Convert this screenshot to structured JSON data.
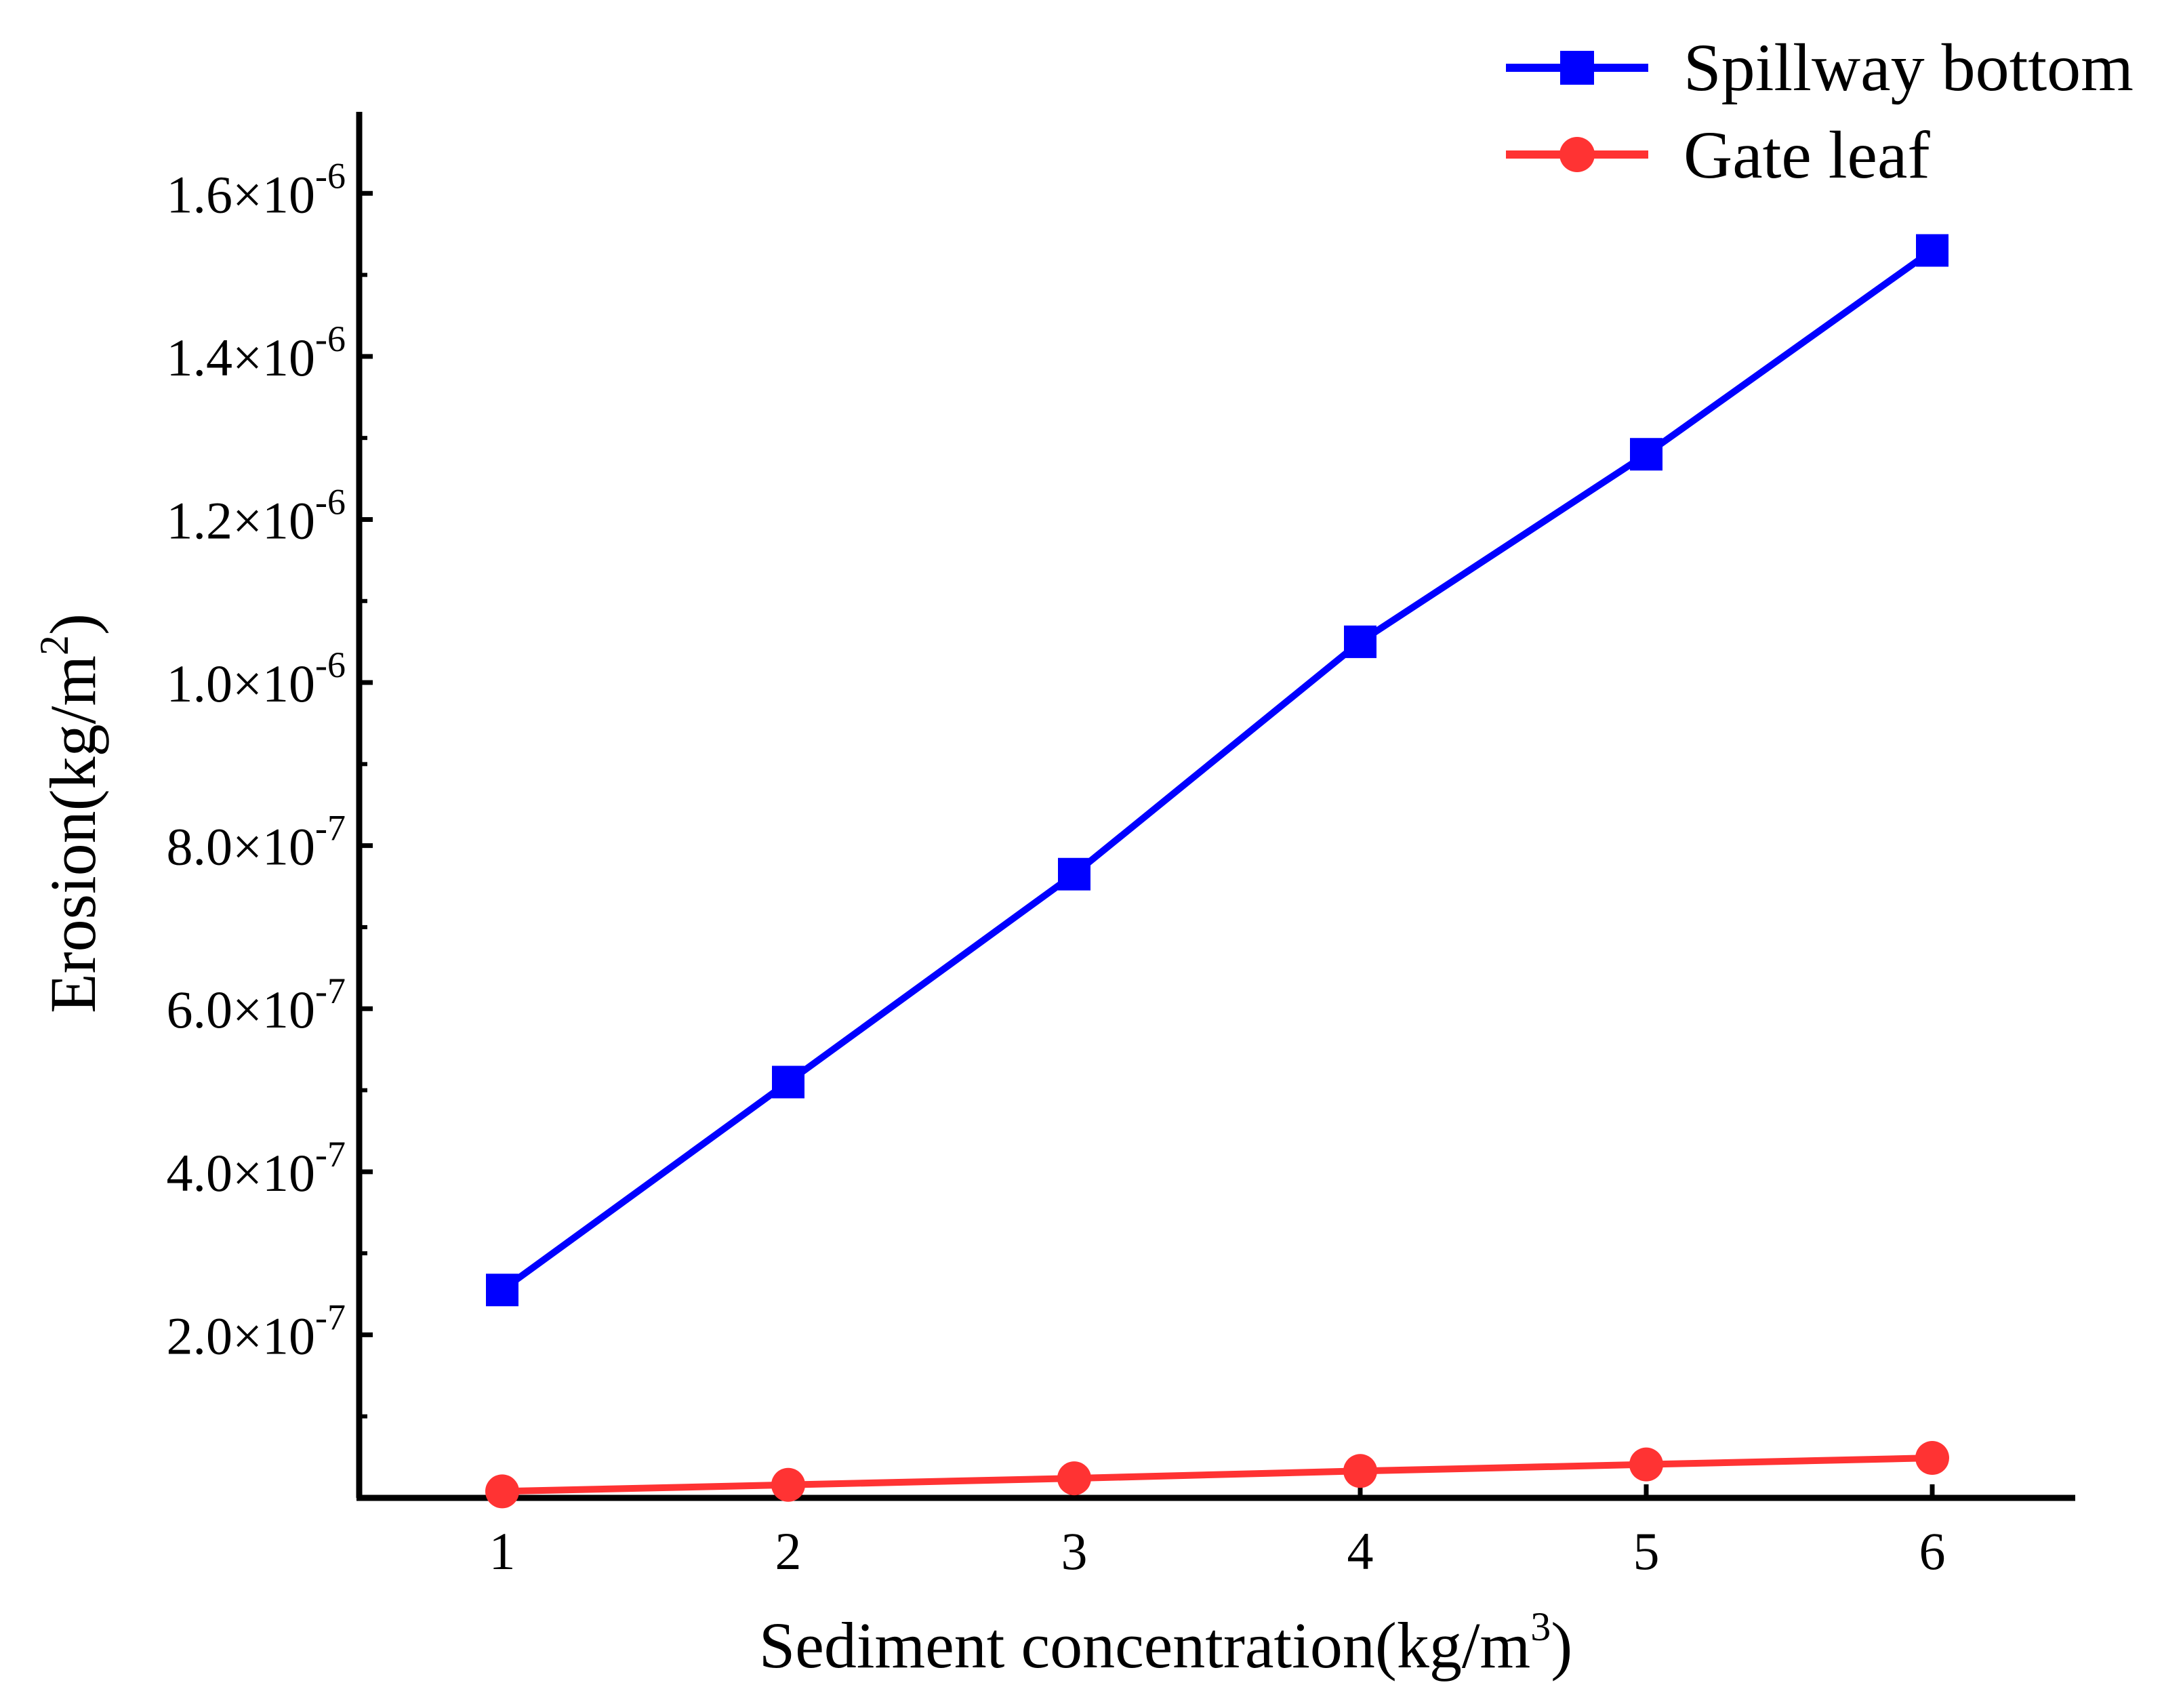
{
  "chart_data": {
    "type": "line",
    "title": "",
    "xlabel": "Sediment concentration(kg/m",
    "xlabel_sup": "3",
    "xlabel_tail": ")",
    "ylabel": "Erosion(kg/m",
    "ylabel_sup": "2",
    "ylabel_tail": ")",
    "x": [
      1,
      2,
      3,
      4,
      5,
      6
    ],
    "xlim": [
      0.5,
      6.5
    ],
    "ylim": [
      0,
      1.7e-06
    ],
    "x_ticks": [
      {
        "value": 1,
        "label": "1"
      },
      {
        "value": 2,
        "label": "2"
      },
      {
        "value": 3,
        "label": "3"
      },
      {
        "value": 4,
        "label": "4"
      },
      {
        "value": 5,
        "label": "5"
      },
      {
        "value": 6,
        "label": "6"
      }
    ],
    "y_ticks": [
      {
        "value": 2e-07,
        "mant": "2.0×10",
        "exp": "-7"
      },
      {
        "value": 4e-07,
        "mant": "4.0×10",
        "exp": "-7"
      },
      {
        "value": 6e-07,
        "mant": "6.0×10",
        "exp": "-7"
      },
      {
        "value": 8e-07,
        "mant": "8.0×10",
        "exp": "-7"
      },
      {
        "value": 1e-06,
        "mant": "1.0×10",
        "exp": "-6"
      },
      {
        "value": 1.2e-06,
        "mant": "1.2×10",
        "exp": "-6"
      },
      {
        "value": 1.4e-06,
        "mant": "1.4×10",
        "exp": "-6"
      },
      {
        "value": 1.6e-06,
        "mant": "1.6×10",
        "exp": "-6"
      }
    ],
    "series": [
      {
        "name": "Spillway bottom",
        "marker": "square",
        "color": "#0000ff",
        "values": [
          2.55e-07,
          5.1e-07,
          7.65e-07,
          1.05e-06,
          1.28e-06,
          1.53e-06
        ]
      },
      {
        "name": "Gate leaf",
        "marker": "circle",
        "color": "#ff3333",
        "values": [
          8e-09,
          1.6e-08,
          2.4e-08,
          3.3e-08,
          4.1e-08,
          4.9e-08
        ]
      }
    ],
    "legend_position": "top-right",
    "grid": false
  }
}
